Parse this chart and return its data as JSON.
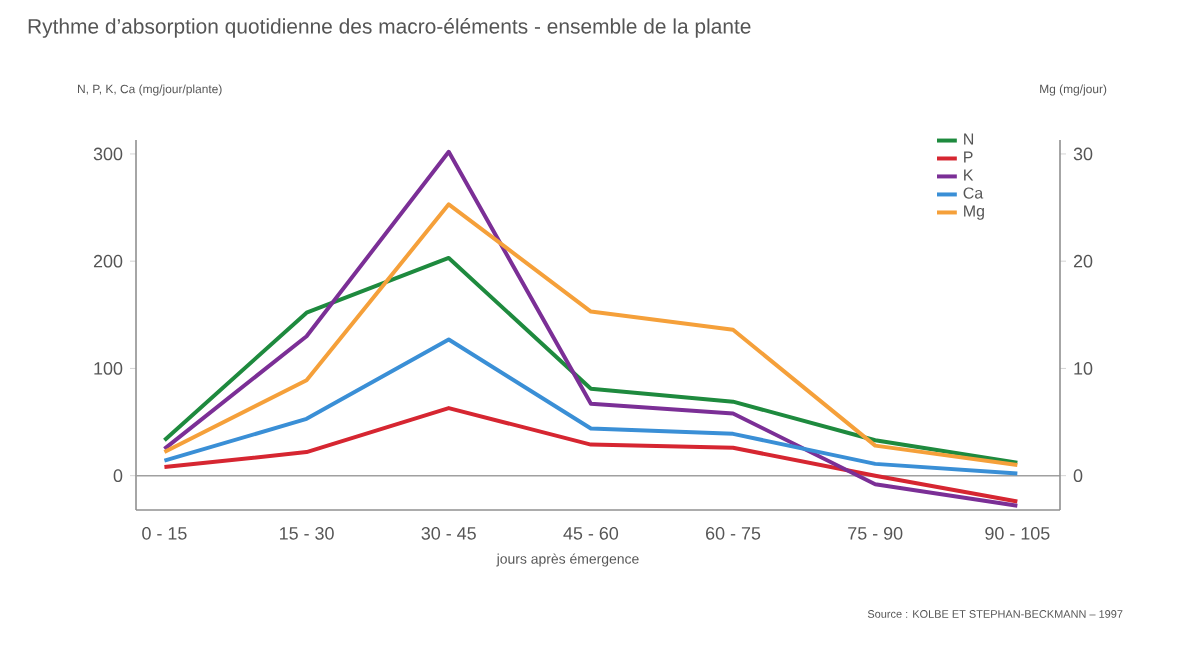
{
  "chart_data": {
    "type": "line",
    "title": "Rythme d’absorption quotidienne des macro-éléments - ensemble de la plante",
    "xlabel": "jours après émergence",
    "ylabel": "N, P, K, Ca (mg/jour/plante)",
    "y2label": "Mg (mg/jour)",
    "categories": [
      "0 - 15",
      "15 - 30",
      "30 - 45",
      "45 - 60",
      "60 - 75",
      "75 - 90",
      "90 - 105"
    ],
    "series": [
      {
        "name": "N",
        "color": "#1e8a3e",
        "values": [
          33,
          152,
          203,
          81,
          69,
          33,
          12
        ]
      },
      {
        "name": "P",
        "color": "#d62631",
        "values": [
          8,
          22,
          63,
          29,
          26,
          0,
          -24
        ]
      },
      {
        "name": "K",
        "color": "#7b2f96",
        "values": [
          25,
          130,
          302,
          67,
          58,
          -8,
          -28
        ]
      },
      {
        "name": "Ca",
        "color": "#3a8fd6",
        "values": [
          14,
          53,
          127,
          44,
          39,
          11,
          2
        ]
      },
      {
        "name": "Mg",
        "color": "#f5a03a",
        "axis": "y2",
        "values": [
          2.2,
          8.9,
          25.3,
          15.3,
          13.6,
          2.8,
          1.0
        ]
      }
    ],
    "ylim": [
      -32,
      313
    ],
    "yticks": [
      0,
      100,
      200,
      300
    ],
    "y2lim": [
      -3.2,
      31.3
    ],
    "y2ticks": [
      0,
      10,
      20,
      30
    ],
    "ref_lines": [
      {
        "axis": "y",
        "value": 0,
        "color": "#a0a0a0"
      }
    ],
    "legend": "top right",
    "marker": "none",
    "line_style": "solid",
    "annotations": [
      "Source : KOLBE ET STEPHAN-BECKMANN – 1997"
    ]
  }
}
